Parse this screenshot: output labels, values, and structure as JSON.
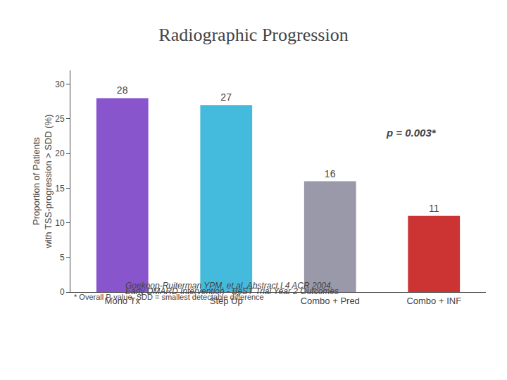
{
  "chart_data": {
    "type": "bar",
    "title": "Radiographic Progression",
    "subtitle": "Early DMARD Intervention - BeST Trial Year 2 Outcomes",
    "categories": [
      "Mono Tx",
      "Step Up",
      "Combo + Pred",
      "Combo + INF"
    ],
    "values": [
      28,
      27,
      16,
      11
    ],
    "colors": [
      "#8855CC",
      "#44BBDD",
      "#9999AA",
      "#CC3333"
    ],
    "ylabel": "Proportion of Patients\nwith TSS-progression > SDD (%)",
    "ylim": [
      0,
      32
    ],
    "yticks": [
      0,
      5,
      10,
      15,
      20,
      25,
      30
    ],
    "grid": false,
    "data_labels": true,
    "annotations": [
      "p = 0.003*",
      "* Overall P-value, SDD = smallest detectable difference",
      "Goekoop-Ruiterman YPM, et al. Abstract L4 ACR 2004."
    ]
  }
}
